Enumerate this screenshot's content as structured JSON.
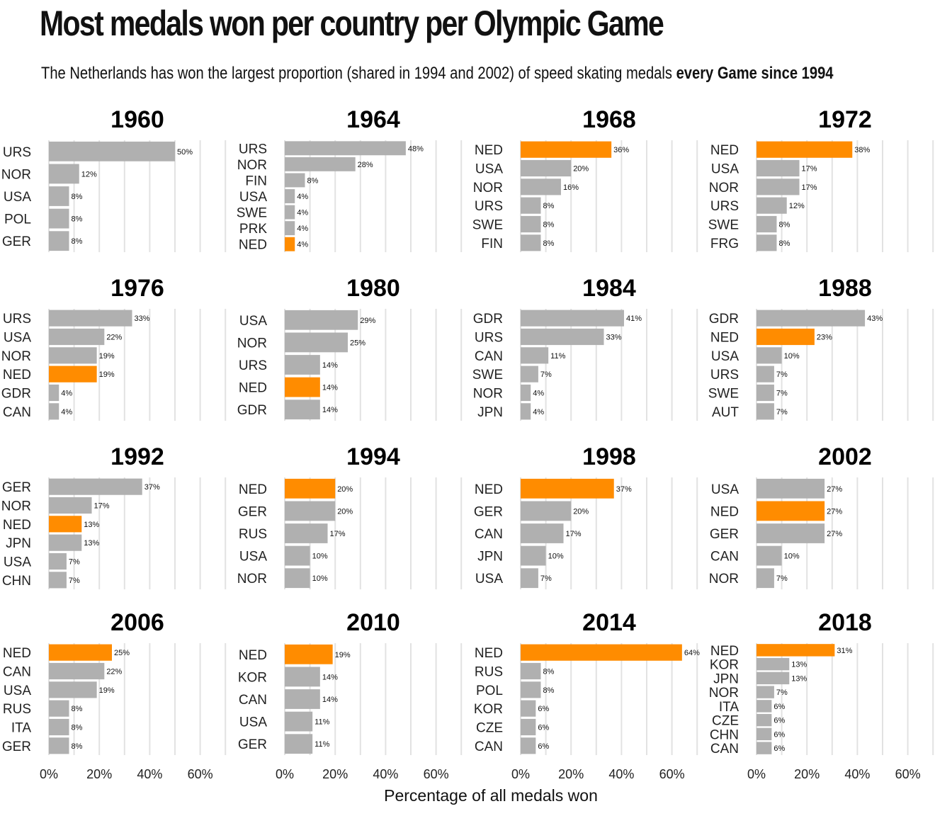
{
  "header": {
    "title": "Most medals won per country per Olympic Game",
    "subtitle_plain": "The Netherlands has won the largest proportion (shared in 1994 and 2002) of speed skating medals ",
    "subtitle_bold": "every Game since 1994"
  },
  "colors": {
    "highlight": "#ff8c00",
    "default_bar": "#b0b0b0",
    "grid": "#e2e2e2"
  },
  "chart_data": {
    "type": "bar",
    "orientation": "horizontal",
    "highlight_category": "NED",
    "x_ticks": [
      "0%",
      "20%",
      "40%",
      "60%"
    ],
    "xlim": [
      0,
      70
    ],
    "xlabel": "Percentage of all medals won",
    "panels": [
      {
        "title": "1960",
        "categories": [
          "URS",
          "NOR",
          "USA",
          "POL",
          "GER"
        ],
        "values": [
          50,
          12,
          8,
          8,
          8
        ],
        "labels": [
          "50%",
          "12%",
          "8%",
          "8%",
          "8%"
        ]
      },
      {
        "title": "1964",
        "categories": [
          "URS",
          "NOR",
          "FIN",
          "USA",
          "SWE",
          "PRK",
          "NED"
        ],
        "values": [
          48,
          28,
          8,
          4,
          4,
          4,
          4
        ],
        "labels": [
          "48%",
          "28%",
          "8%",
          "4%",
          "4%",
          "4%",
          "4%"
        ]
      },
      {
        "title": "1968",
        "categories": [
          "NED",
          "USA",
          "NOR",
          "URS",
          "SWE",
          "FIN"
        ],
        "values": [
          36,
          20,
          16,
          8,
          8,
          8
        ],
        "labels": [
          "36%",
          "20%",
          "16%",
          "8%",
          "8%",
          "8%"
        ]
      },
      {
        "title": "1972",
        "categories": [
          "NED",
          "USA",
          "NOR",
          "URS",
          "SWE",
          "FRG"
        ],
        "values": [
          38,
          17,
          17,
          12,
          8,
          8
        ],
        "labels": [
          "38%",
          "17%",
          "17%",
          "12%",
          "8%",
          "8%"
        ]
      },
      {
        "title": "1976",
        "categories": [
          "URS",
          "USA",
          "NOR",
          "NED",
          "GDR",
          "CAN"
        ],
        "values": [
          33,
          22,
          19,
          19,
          4,
          4
        ],
        "labels": [
          "33%",
          "22%",
          "19%",
          "19%",
          "4%",
          "4%"
        ]
      },
      {
        "title": "1980",
        "categories": [
          "USA",
          "NOR",
          "URS",
          "NED",
          "GDR"
        ],
        "values": [
          29,
          25,
          14,
          14,
          14
        ],
        "labels": [
          "29%",
          "25%",
          "14%",
          "14%",
          "14%"
        ]
      },
      {
        "title": "1984",
        "categories": [
          "GDR",
          "URS",
          "CAN",
          "SWE",
          "NOR",
          "JPN"
        ],
        "values": [
          41,
          33,
          11,
          7,
          4,
          4
        ],
        "labels": [
          "41%",
          "33%",
          "11%",
          "7%",
          "4%",
          "4%"
        ]
      },
      {
        "title": "1988",
        "categories": [
          "GDR",
          "NED",
          "USA",
          "URS",
          "SWE",
          "AUT"
        ],
        "values": [
          43,
          23,
          10,
          7,
          7,
          7
        ],
        "labels": [
          "43%",
          "23%",
          "10%",
          "7%",
          "7%",
          "7%"
        ]
      },
      {
        "title": "1992",
        "categories": [
          "GER",
          "NOR",
          "NED",
          "JPN",
          "USA",
          "CHN"
        ],
        "values": [
          37,
          17,
          13,
          13,
          7,
          7
        ],
        "labels": [
          "37%",
          "17%",
          "13%",
          "13%",
          "7%",
          "7%"
        ]
      },
      {
        "title": "1994",
        "categories": [
          "NED",
          "GER",
          "RUS",
          "USA",
          "NOR"
        ],
        "values": [
          20,
          20,
          17,
          10,
          10
        ],
        "labels": [
          "20%",
          "20%",
          "17%",
          "10%",
          "10%"
        ]
      },
      {
        "title": "1998",
        "categories": [
          "NED",
          "GER",
          "CAN",
          "JPN",
          "USA"
        ],
        "values": [
          37,
          20,
          17,
          10,
          7
        ],
        "labels": [
          "37%",
          "20%",
          "17%",
          "10%",
          "7%"
        ]
      },
      {
        "title": "2002",
        "categories": [
          "USA",
          "NED",
          "GER",
          "CAN",
          "NOR"
        ],
        "values": [
          27,
          27,
          27,
          10,
          7
        ],
        "labels": [
          "27%",
          "27%",
          "27%",
          "10%",
          "7%"
        ]
      },
      {
        "title": "2006",
        "categories": [
          "NED",
          "CAN",
          "USA",
          "RUS",
          "ITA",
          "GER"
        ],
        "values": [
          25,
          22,
          19,
          8,
          8,
          8
        ],
        "labels": [
          "25%",
          "22%",
          "19%",
          "8%",
          "8%",
          "8%"
        ]
      },
      {
        "title": "2010",
        "categories": [
          "NED",
          "KOR",
          "CAN",
          "USA",
          "GER"
        ],
        "values": [
          19,
          14,
          14,
          11,
          11
        ],
        "labels": [
          "19%",
          "14%",
          "14%",
          "11%",
          "11%"
        ]
      },
      {
        "title": "2014",
        "categories": [
          "NED",
          "RUS",
          "POL",
          "KOR",
          "CZE",
          "CAN"
        ],
        "values": [
          64,
          8,
          8,
          6,
          6,
          6
        ],
        "labels": [
          "64%",
          "8%",
          "8%",
          "6%",
          "6%",
          "6%"
        ]
      },
      {
        "title": "2018",
        "categories": [
          "NED",
          "KOR",
          "JPN",
          "NOR",
          "ITA",
          "CZE",
          "CHN",
          "CAN"
        ],
        "values": [
          31,
          13,
          13,
          7,
          6,
          6,
          6,
          6
        ],
        "labels": [
          "31%",
          "13%",
          "13%",
          "7%",
          "6%",
          "6%",
          "6%",
          "6%"
        ]
      }
    ]
  }
}
